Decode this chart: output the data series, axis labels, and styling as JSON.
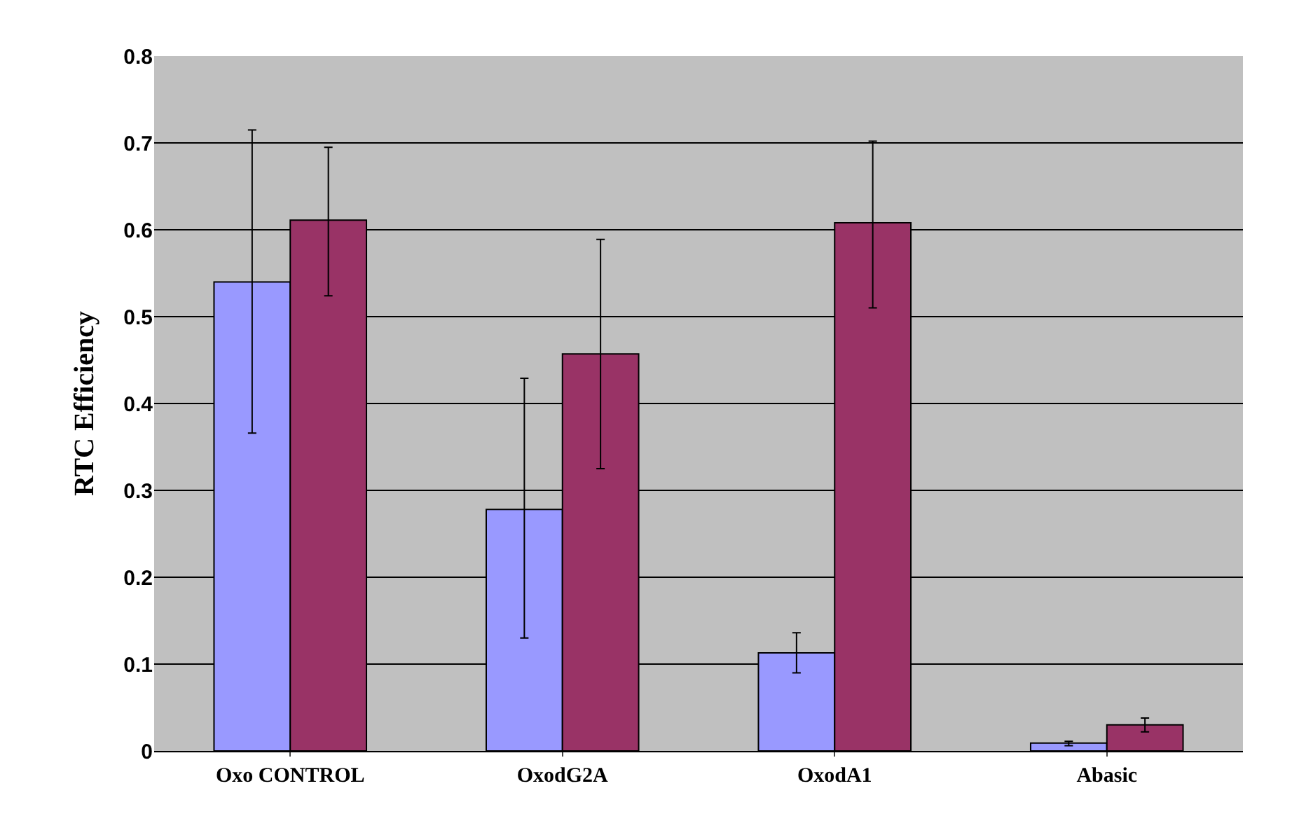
{
  "chart_data": {
    "type": "bar",
    "ylabel": "RTC Efficiency",
    "categories": [
      "Oxo CONTROL",
      "OxodG2A",
      "OxodA1",
      "Abasic"
    ],
    "series": [
      {
        "color": "#9999ff",
        "values": [
          0.54,
          0.278,
          0.113,
          0.009
        ],
        "errors": [
          [
            0.366,
            0.715
          ],
          [
            0.13,
            0.429
          ],
          [
            0.09,
            0.136
          ],
          [
            0.006,
            0.011
          ]
        ]
      },
      {
        "color": "#993366",
        "values": [
          0.611,
          0.457,
          0.608,
          0.03
        ],
        "errors": [
          [
            0.524,
            0.695
          ],
          [
            0.325,
            0.589
          ],
          [
            0.51,
            0.702
          ],
          [
            0.022,
            0.038
          ]
        ]
      }
    ],
    "ylim": [
      0,
      0.8
    ],
    "yticks": [
      0,
      0.1,
      0.2,
      0.3,
      0.4,
      0.5,
      0.6,
      0.7,
      0.8
    ],
    "grid": "y"
  }
}
